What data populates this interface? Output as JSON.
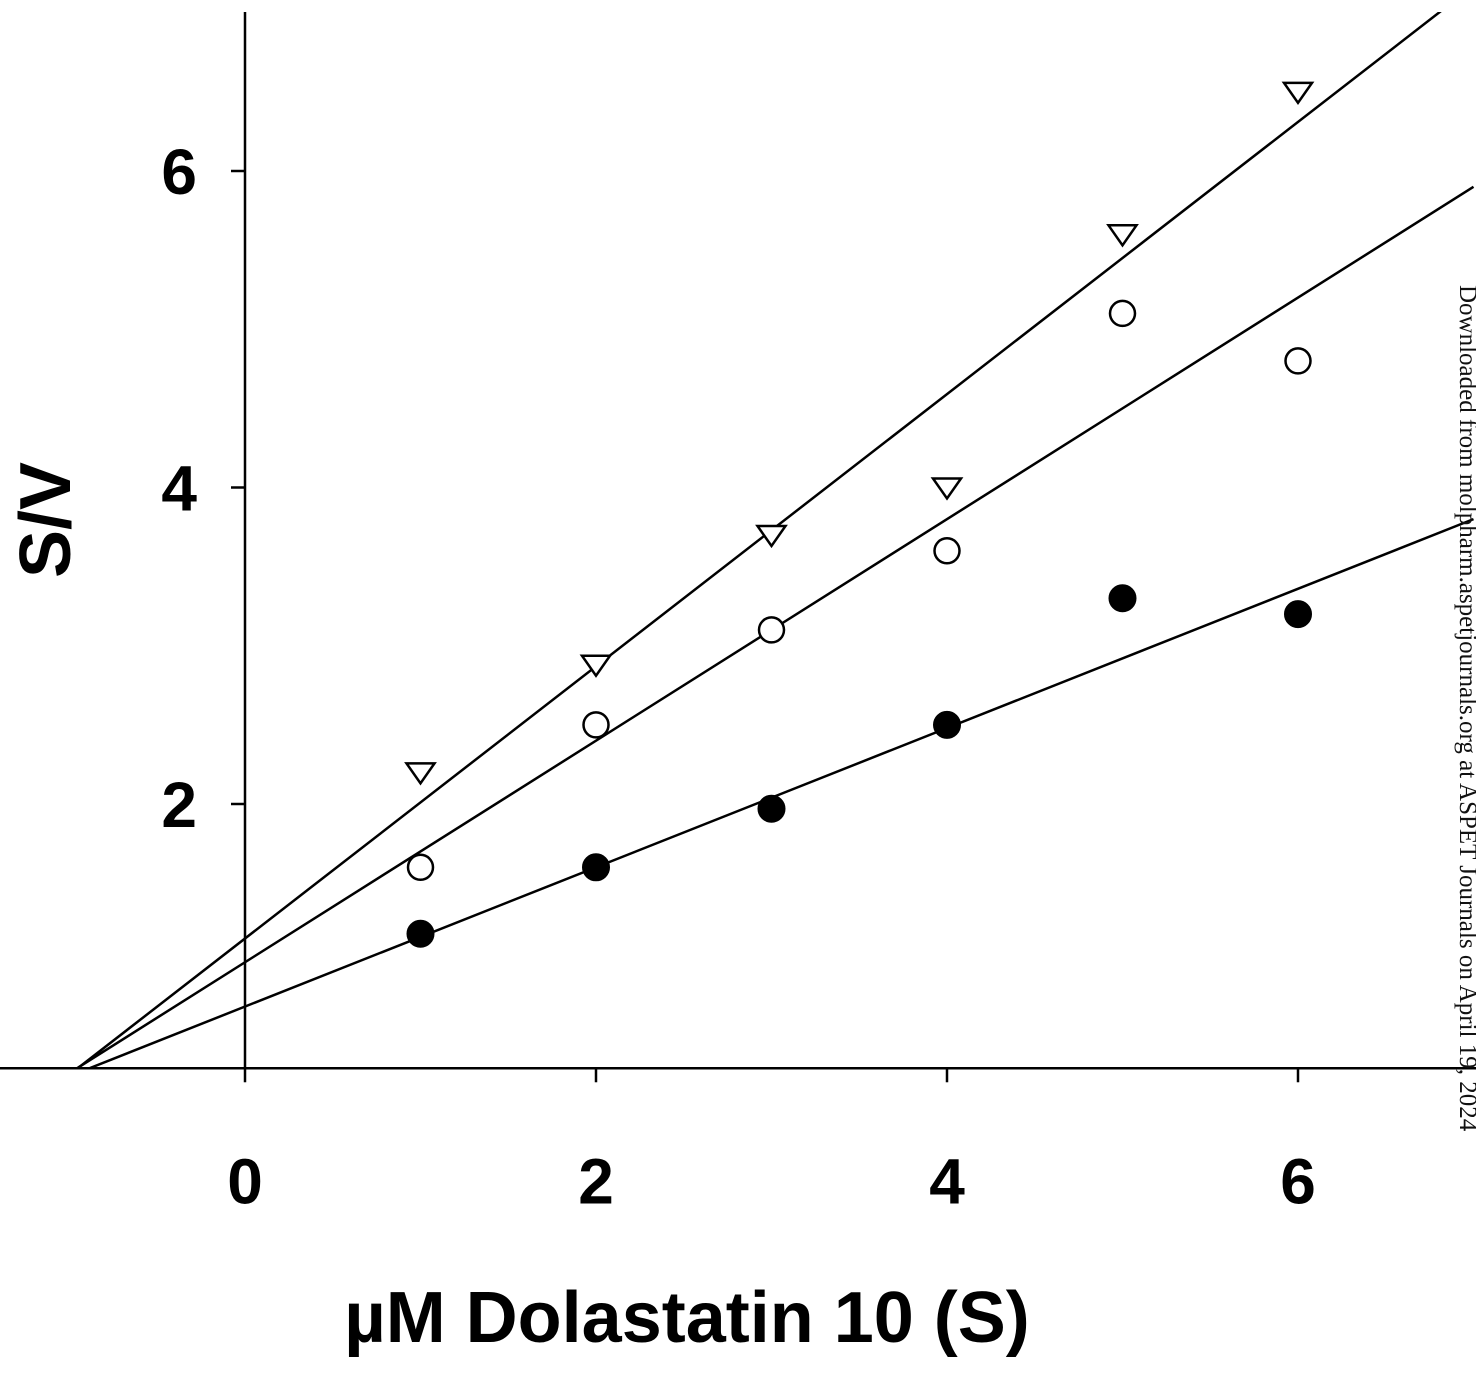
{
  "chart_data": {
    "type": "scatter",
    "xlabel": "µM Dolastatin 10 (S)",
    "ylabel": "S/V",
    "xlim": [
      -1.4,
      7.0
    ],
    "ylim": [
      0.2,
      7.0
    ],
    "xticks": [
      0,
      2,
      4,
      6
    ],
    "yticks": [
      2,
      4,
      6
    ],
    "grid": false,
    "legend": "none",
    "series": [
      {
        "marker": "open-triangle-down",
        "x": [
          1,
          2,
          3,
          4,
          5,
          6
        ],
        "y": [
          2.2,
          2.88,
          3.7,
          4.0,
          5.6,
          6.5
        ],
        "fit": {
          "intercept": 1.15,
          "slope": 0.86
        }
      },
      {
        "marker": "open-circle",
        "x": [
          1,
          2,
          3,
          4,
          5,
          6
        ],
        "y": [
          1.6,
          2.5,
          3.1,
          3.6,
          5.1,
          4.8
        ],
        "fit": {
          "intercept": 1.0,
          "slope": 0.7
        }
      },
      {
        "marker": "filled-circle",
        "x": [
          1,
          2,
          3,
          4,
          5,
          6
        ],
        "y": [
          1.18,
          1.6,
          1.97,
          2.5,
          3.3,
          3.2
        ],
        "fit": {
          "intercept": 0.72,
          "slope": 0.44
        }
      }
    ]
  },
  "watermark": "Downloaded from molpharm.aspetjournals.org at ASPET Journals on April 19, 2024"
}
